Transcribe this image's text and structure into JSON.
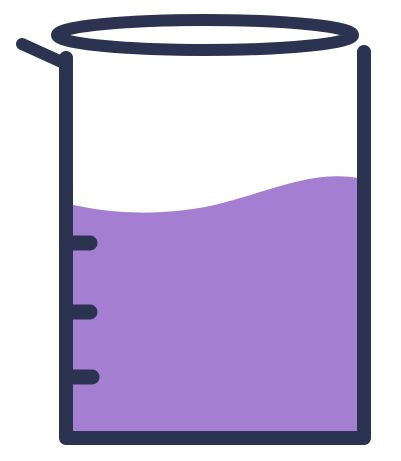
{
  "illustration": {
    "subject": "beaker-icon",
    "liquid_fill_fraction": 0.62,
    "graduation_mark_count": 3
  },
  "colors": {
    "background": "#ffffff",
    "outline": "#2b3350",
    "liquid": "#a47fd1"
  }
}
